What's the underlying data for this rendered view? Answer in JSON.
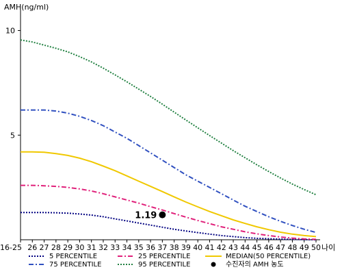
{
  "chart_data": {
    "type": "line",
    "ylabel": "AMH(ng/ml)",
    "xlabel": "나이",
    "ylim": [
      0,
      11
    ],
    "yticks": [
      5,
      10
    ],
    "categories": [
      "16-25",
      "26",
      "27",
      "28",
      "29",
      "30",
      "31",
      "32",
      "33",
      "34",
      "35",
      "36",
      "37",
      "38",
      "39",
      "40",
      "41",
      "42",
      "43",
      "44",
      "45",
      "46",
      "47",
      "48",
      "49",
      "50"
    ],
    "series": [
      {
        "name": "5 PERCENTILE",
        "color": "#000080",
        "dash": "dotted",
        "values": [
          1.3,
          1.3,
          1.3,
          1.29,
          1.27,
          1.23,
          1.18,
          1.1,
          1.0,
          0.9,
          0.8,
          0.7,
          0.6,
          0.5,
          0.42,
          0.34,
          0.27,
          0.2,
          0.15,
          0.1,
          0.07,
          0.05,
          0.03,
          0.02,
          0.01,
          0.0
        ]
      },
      {
        "name": "25 PERCENTILE",
        "color": "#e0207a",
        "dash": "dashdot",
        "values": [
          2.6,
          2.6,
          2.58,
          2.55,
          2.5,
          2.43,
          2.33,
          2.2,
          2.05,
          1.9,
          1.75,
          1.58,
          1.42,
          1.25,
          1.08,
          0.92,
          0.77,
          0.62,
          0.5,
          0.38,
          0.28,
          0.2,
          0.13,
          0.08,
          0.04,
          0.02
        ]
      },
      {
        "name": "MEDIAN(50 PERCENTILE)",
        "color": "#f0c800",
        "dash": "solid",
        "values": [
          4.2,
          4.2,
          4.18,
          4.12,
          4.03,
          3.9,
          3.73,
          3.52,
          3.3,
          3.05,
          2.8,
          2.55,
          2.3,
          2.05,
          1.8,
          1.57,
          1.35,
          1.15,
          0.95,
          0.78,
          0.62,
          0.48,
          0.36,
          0.27,
          0.2,
          0.15
        ]
      },
      {
        "name": "75 PERCENTILE",
        "color": "#3050c0",
        "dash": "dashdot",
        "values": [
          6.2,
          6.2,
          6.2,
          6.15,
          6.05,
          5.9,
          5.7,
          5.45,
          5.15,
          4.85,
          4.5,
          4.15,
          3.8,
          3.45,
          3.1,
          2.8,
          2.5,
          2.2,
          1.9,
          1.6,
          1.35,
          1.1,
          0.88,
          0.68,
          0.5,
          0.35
        ]
      },
      {
        "name": "95 PERCENTILE",
        "color": "#208040",
        "dash": "dotted",
        "values": [
          9.55,
          9.45,
          9.3,
          9.15,
          8.98,
          8.75,
          8.5,
          8.2,
          7.88,
          7.55,
          7.2,
          6.85,
          6.48,
          6.1,
          5.72,
          5.35,
          4.98,
          4.62,
          4.26,
          3.92,
          3.58,
          3.26,
          2.95,
          2.66,
          2.4,
          2.15
        ]
      }
    ],
    "points": [
      {
        "name": "수진자의 AMH 농도",
        "x": "37",
        "y": 1.19,
        "label": "1.19",
        "color": "#000000"
      }
    ],
    "legend_position": "bottom",
    "grid": false
  }
}
